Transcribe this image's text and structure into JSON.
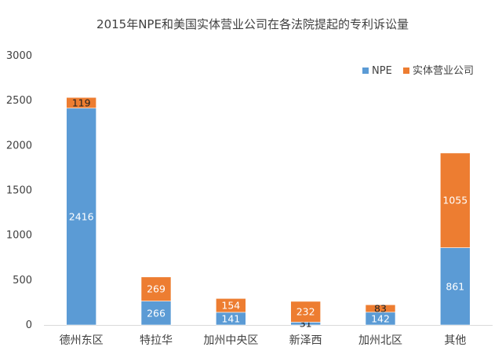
{
  "chart_data": {
    "type": "bar",
    "stacked": true,
    "title": "2015年NPE和美国实体营业公司在各法院提起的专利诉讼量",
    "categories": [
      "德州东区",
      "特拉华",
      "加州中央区",
      "新泽西",
      "加州北区",
      "其他"
    ],
    "series": [
      {
        "name": "NPE",
        "values": [
          2416,
          266,
          141,
          31,
          142,
          861
        ],
        "color": "#5B9BD5"
      },
      {
        "name": "实体营业公司",
        "values": [
          119,
          269,
          154,
          232,
          83,
          1055
        ],
        "color": "#ED7D31"
      }
    ],
    "ylim": [
      0,
      3000
    ],
    "yticks": [
      0,
      500,
      1000,
      1500,
      2000,
      2500,
      3000
    ],
    "xlabel": "",
    "ylabel": "",
    "grid": false,
    "legend_position": "top-right"
  }
}
